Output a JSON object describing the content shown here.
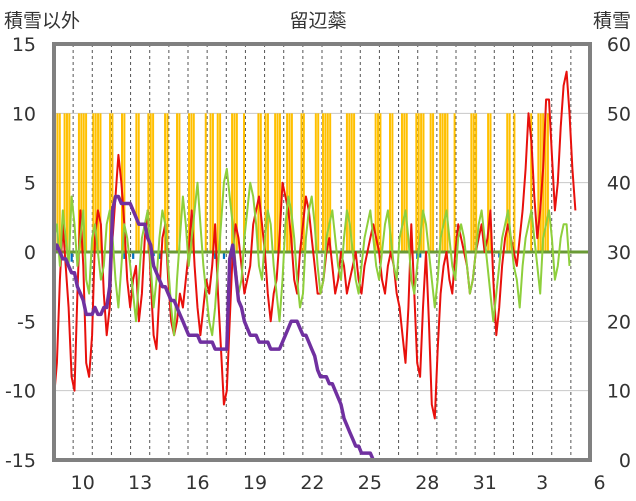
{
  "chart_data": {
    "type": "line",
    "title": "留辺蘂",
    "left_axis_label": "積雪以外",
    "right_axis_label": "積雪",
    "left_axis": {
      "range": [
        -15,
        15
      ],
      "ticks": [
        "15",
        "10",
        "5",
        "0",
        "-5",
        "-10",
        "-15"
      ]
    },
    "right_axis": {
      "range": [
        0,
        60
      ],
      "ticks": [
        "60",
        "50",
        "40",
        "30",
        "20",
        "10",
        "0"
      ]
    },
    "x_ticks": [
      "10",
      "13",
      "16",
      "19",
      "22",
      "25",
      "28",
      "31",
      "3",
      "6"
    ],
    "grid": "dashed vertical lines each day, horizontal lines every 5 units",
    "colors": {
      "temperature": "#e8100c",
      "wind": "#8ecf3c",
      "snow_depth": "#7030a0",
      "sunshine": "#ffc000",
      "precipitation": "#0070c0",
      "zero_line": "#6a9a36",
      "frame": "#808080"
    },
    "series": [
      {
        "key": "temperature",
        "axis": "left",
        "values": [
          -10.5,
          -8,
          -2,
          2,
          -1,
          -4,
          -9,
          -10,
          -3,
          3,
          -1,
          -8,
          -9,
          -6,
          1,
          3,
          2,
          -3,
          -6,
          -4,
          1,
          4,
          7,
          5,
          2,
          -2,
          -4,
          -2,
          -1,
          -5,
          -3,
          1,
          3,
          -2,
          -6,
          -7,
          -3,
          1,
          2,
          -2,
          -5,
          -6,
          -5,
          -3,
          -4,
          -2,
          0,
          3,
          -1,
          -4,
          -6,
          -4,
          -2,
          -3,
          -1,
          2,
          -3,
          -7,
          -11,
          -10,
          -5,
          0,
          2,
          1,
          -1,
          -3,
          -2,
          -1,
          2,
          3,
          4,
          2,
          0,
          -3,
          -5,
          -3,
          -2,
          1,
          5,
          4,
          3,
          1,
          -2,
          -3,
          0,
          2,
          4,
          3,
          1,
          -1,
          -3,
          -3,
          -2,
          0,
          1,
          -1,
          -3,
          -2,
          0,
          -1,
          -3,
          -2,
          -1,
          0,
          -2,
          -3,
          -1,
          0,
          1,
          2,
          1,
          0,
          -2,
          -3,
          -1,
          0,
          -1,
          -3,
          -4,
          -6,
          -8,
          -4,
          2,
          -3,
          -8,
          -9,
          -4,
          0,
          -5,
          -11,
          -12,
          -7,
          -3,
          -1,
          0,
          -2,
          -3,
          0,
          2,
          1,
          0,
          -1,
          -3,
          -2,
          0,
          1,
          2,
          0,
          1,
          3,
          -2,
          -6,
          -4,
          -1,
          1,
          2,
          1,
          0,
          -1,
          1,
          3,
          6,
          10,
          8,
          4,
          1,
          3,
          6,
          11,
          11,
          7,
          3,
          5,
          9,
          12,
          13,
          10,
          6,
          3
        ]
      },
      {
        "key": "wind",
        "axis": "left",
        "values": [
          1,
          2,
          -1,
          3,
          1,
          -1,
          4,
          2,
          -1,
          1,
          3,
          -2,
          -3,
          1,
          2,
          0,
          -2,
          -1,
          2,
          3,
          1,
          -2,
          -4,
          -1,
          2,
          1,
          -1,
          -3,
          -5,
          -2,
          1,
          2,
          3,
          -1,
          -4,
          -2,
          1,
          3,
          2,
          -1,
          -4,
          -6,
          -2,
          1,
          4,
          2,
          -1,
          1,
          3,
          5,
          2,
          -1,
          -3,
          -5,
          -6,
          -4,
          -1,
          2,
          5,
          6,
          4,
          2,
          -1,
          -3,
          -2,
          1,
          3,
          5,
          4,
          2,
          -1,
          -2,
          1,
          3,
          2,
          -1,
          -3,
          -5,
          -2,
          2,
          4,
          3,
          1,
          -2,
          -4,
          -3,
          1,
          3,
          4,
          2,
          -1,
          -3,
          -2,
          1,
          2,
          3,
          1,
          -1,
          -2,
          1,
          3,
          2,
          0,
          -2,
          -3,
          -1,
          1,
          2,
          3,
          1,
          -1,
          -2,
          0,
          2,
          3,
          1,
          -1,
          -2,
          1,
          2,
          3,
          1,
          -2,
          -3,
          -1,
          1,
          3,
          2,
          0,
          -2,
          -4,
          -2,
          1,
          2,
          3,
          1,
          -1,
          -2,
          1,
          2,
          1,
          -1,
          -3,
          -2,
          0,
          2,
          3,
          1,
          -1,
          -3,
          -5,
          -3,
          -1,
          1,
          2,
          3,
          1,
          -1,
          -2,
          -4,
          -1,
          1,
          2,
          3,
          1,
          -1,
          -3,
          1,
          2,
          3,
          1,
          -2,
          -1,
          1,
          2,
          2,
          -1
        ]
      },
      {
        "key": "snow_depth",
        "axis": "right",
        "values": [
          30,
          31,
          30,
          29,
          29,
          28,
          27,
          27,
          25,
          24,
          23,
          21,
          21,
          21,
          22,
          21,
          21,
          22,
          22,
          25,
          36,
          38,
          38,
          37,
          37,
          37,
          37,
          36,
          35,
          34,
          34,
          34,
          32,
          31,
          28,
          27,
          26,
          25,
          25,
          24,
          23,
          23,
          22,
          21,
          20,
          19,
          18,
          18,
          18,
          18,
          17,
          17,
          17,
          17,
          17,
          16,
          16,
          16,
          16,
          16,
          29,
          31,
          27,
          23,
          22,
          20,
          19,
          18,
          18,
          18,
          17,
          17,
          17,
          17,
          16,
          16,
          16,
          16,
          17,
          18,
          19,
          20,
          20,
          20,
          19,
          18,
          18,
          17,
          16,
          15,
          13,
          12,
          12,
          12,
          11,
          11,
          10,
          9,
          8,
          6,
          5,
          4,
          3,
          2,
          2,
          1,
          1,
          1,
          1,
          0,
          0,
          0,
          0,
          0,
          0,
          0,
          0,
          0,
          0,
          0,
          0,
          0,
          0,
          0,
          0,
          0,
          0,
          0,
          0,
          0,
          0,
          0,
          0,
          0,
          0,
          0,
          0,
          0,
          0,
          0,
          0,
          0,
          0,
          0,
          0,
          0,
          0,
          0,
          0,
          0,
          0,
          0,
          0,
          0,
          0,
          0,
          0,
          0,
          0,
          0,
          0,
          0,
          0,
          0,
          0,
          0,
          0,
          0,
          0,
          0,
          0,
          0,
          0,
          0,
          0,
          0,
          0,
          0,
          0,
          0,
          0,
          0,
          0,
          0
        ]
      },
      {
        "key": "sunshine",
        "axis": "left",
        "days": [
          [
            1,
            1,
            1,
            0,
            1,
            1,
            1,
            0
          ],
          [
            0,
            0,
            1,
            1,
            1,
            1,
            0,
            0
          ],
          [
            1,
            1,
            1,
            1,
            0,
            0,
            0,
            1
          ],
          [
            1,
            0,
            0,
            0,
            1,
            1,
            0,
            0
          ],
          [
            0,
            0,
            1,
            1,
            0,
            0,
            0,
            1
          ],
          [
            1,
            1,
            0,
            0,
            0,
            0,
            1,
            1
          ],
          [
            0,
            0,
            0,
            1,
            1,
            0,
            0,
            0
          ],
          [
            1,
            1,
            1,
            0,
            0,
            0,
            0,
            1
          ],
          [
            0,
            1,
            1,
            0,
            1,
            1,
            0,
            0
          ],
          [
            0,
            0,
            1,
            1,
            1,
            0,
            0,
            1
          ],
          [
            0,
            0,
            0,
            0,
            0,
            1,
            1,
            0
          ],
          [
            1,
            1,
            0,
            0,
            1,
            1,
            1,
            0
          ],
          [
            0,
            1,
            1,
            1,
            0,
            0,
            0,
            1
          ],
          [
            1,
            0,
            0,
            0,
            0,
            1,
            1,
            0
          ],
          [
            1,
            1,
            1,
            1,
            0,
            0,
            0,
            0
          ],
          [
            0,
            0,
            1,
            1,
            1,
            1,
            0,
            0
          ],
          [
            0,
            0,
            0,
            0,
            0,
            0,
            1,
            1
          ],
          [
            1,
            0,
            0,
            0,
            1,
            1,
            0,
            0
          ],
          [
            0,
            1,
            1,
            1,
            0,
            0,
            0,
            1
          ],
          [
            1,
            1,
            1,
            0,
            0,
            1,
            1,
            0
          ],
          [
            0,
            1,
            1,
            1,
            1,
            0,
            0,
            1
          ],
          [
            0,
            0,
            0,
            0,
            0,
            0,
            1,
            1
          ],
          [
            1,
            0,
            0,
            0,
            0,
            1,
            1,
            0
          ],
          [
            0,
            0,
            0,
            0,
            0,
            1,
            1,
            0
          ],
          [
            1,
            0,
            0,
            0,
            0,
            0,
            0,
            1
          ],
          [
            0,
            0,
            1,
            1,
            1,
            1,
            1,
            0
          ],
          [
            0,
            0,
            0,
            0,
            0,
            0,
            0,
            0
          ]
        ]
      },
      {
        "key": "precipitation",
        "axis": "left",
        "bars": [
          [
            6,
            -0.7
          ],
          [
            24,
            -0.5
          ],
          [
            27,
            -0.5
          ],
          [
            34,
            -0.3
          ],
          [
            36,
            -0.5
          ],
          [
            46,
            -0.5
          ],
          [
            55,
            -0.5
          ],
          [
            58,
            -0.5
          ],
          [
            61,
            -0.5
          ],
          [
            124,
            -0.5
          ],
          [
            125,
            -0.4
          ],
          [
            152,
            -0.4
          ]
        ]
      }
    ]
  }
}
